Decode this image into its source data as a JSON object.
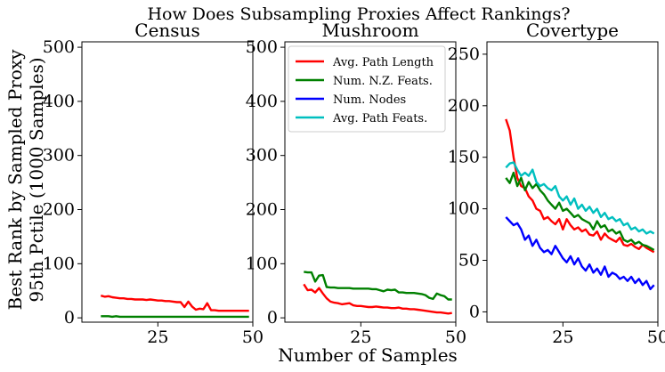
{
  "figure": {
    "title": "How Does Subsampling Proxies Affect Rankings?",
    "xlabel": "Number of Samples",
    "ylabel_line1": "Best Rank by Sampled Proxy",
    "ylabel_line2": "95th Pctile (1000 Samples)"
  },
  "colors": {
    "avg_path_length": "#ff0000",
    "num_nz_feats": "#008000",
    "num_nodes": "#0000ff",
    "avg_path_feats": "#00bfbf"
  },
  "legend": [
    {
      "label": "Avg. Path Length",
      "key": "avg_path_length"
    },
    {
      "label": "Num. N.Z. Feats.",
      "key": "num_nz_feats"
    },
    {
      "label": "Num. Nodes",
      "key": "num_nodes"
    },
    {
      "label": "Avg. Path Feats.",
      "key": "avg_path_feats"
    }
  ],
  "chart_data": [
    {
      "type": "line",
      "title": "Census",
      "xlim": [
        5,
        50
      ],
      "ylim": [
        -8,
        510
      ],
      "xticks": [
        25,
        50
      ],
      "yticks": [
        0,
        100,
        200,
        300,
        400,
        500
      ],
      "x": [
        10,
        11,
        12,
        13,
        14,
        15,
        16,
        17,
        18,
        19,
        20,
        21,
        22,
        23,
        24,
        25,
        26,
        27,
        28,
        29,
        30,
        31,
        32,
        33,
        34,
        35,
        36,
        37,
        38,
        39,
        40,
        41,
        42,
        43,
        44,
        45,
        46,
        47,
        48,
        49
      ],
      "series": [
        {
          "name": "Avg. Path Length",
          "key": "avg_path_length",
          "values": [
            41,
            39,
            40,
            38,
            37,
            36,
            36,
            35,
            35,
            34,
            34,
            34,
            33,
            34,
            33,
            32,
            32,
            31,
            31,
            30,
            29,
            29,
            20,
            30,
            21,
            15,
            17,
            16,
            27,
            14,
            14,
            13,
            13,
            13,
            13,
            13,
            13,
            13,
            13,
            13
          ]
        },
        {
          "name": "Num. N.Z. Feats.",
          "key": "num_nz_feats",
          "values": [
            3,
            3,
            3,
            2,
            3,
            2,
            2,
            2,
            2,
            2,
            2,
            2,
            2,
            2,
            2,
            2,
            2,
            2,
            2,
            2,
            2,
            2,
            2,
            2,
            2,
            2,
            2,
            2,
            2,
            2,
            2,
            2,
            2,
            2,
            2,
            2,
            2,
            2,
            2,
            2
          ]
        }
      ]
    },
    {
      "type": "line",
      "title": "Mushroom",
      "xlim": [
        5,
        50
      ],
      "ylim": [
        -8,
        510
      ],
      "xticks": [
        25,
        50
      ],
      "yticks": [
        0,
        100,
        200,
        300,
        400,
        500
      ],
      "x": [
        10,
        11,
        12,
        13,
        14,
        15,
        16,
        17,
        18,
        19,
        20,
        21,
        22,
        23,
        24,
        25,
        26,
        27,
        28,
        29,
        30,
        31,
        32,
        33,
        34,
        35,
        36,
        37,
        38,
        39,
        40,
        41,
        42,
        43,
        44,
        45,
        46,
        47,
        48,
        49
      ],
      "series": [
        {
          "name": "Avg. Path Length",
          "key": "avg_path_length",
          "values": [
            62,
            51,
            52,
            47,
            55,
            45,
            36,
            30,
            28,
            27,
            25,
            26,
            27,
            23,
            22,
            22,
            21,
            20,
            20,
            21,
            20,
            19,
            19,
            18,
            18,
            19,
            17,
            17,
            16,
            16,
            15,
            14,
            13,
            12,
            11,
            10,
            10,
            9,
            8,
            9
          ]
        },
        {
          "name": "Num. N.Z. Feats.",
          "key": "num_nz_feats",
          "values": [
            85,
            84,
            84,
            67,
            78,
            79,
            57,
            56,
            56,
            55,
            55,
            55,
            55,
            54,
            54,
            54,
            54,
            54,
            53,
            53,
            51,
            49,
            52,
            51,
            52,
            47,
            47,
            46,
            46,
            46,
            45,
            44,
            42,
            37,
            35,
            45,
            42,
            40,
            34,
            34
          ]
        }
      ]
    },
    {
      "type": "line",
      "title": "Covertype",
      "xlim": [
        5,
        50
      ],
      "ylim": [
        -10,
        262
      ],
      "xticks": [
        25,
        50
      ],
      "yticks": [
        0,
        50,
        100,
        150,
        200,
        250
      ],
      "x": [
        10,
        11,
        12,
        13,
        14,
        15,
        16,
        17,
        18,
        19,
        20,
        21,
        22,
        23,
        24,
        25,
        26,
        27,
        28,
        29,
        30,
        31,
        32,
        33,
        34,
        35,
        36,
        37,
        38,
        39,
        40,
        41,
        42,
        43,
        44,
        45,
        46,
        47,
        48,
        49
      ],
      "series": [
        {
          "name": "Avg. Path Length",
          "key": "avg_path_length",
          "values": [
            187,
            176,
            150,
            130,
            122,
            120,
            112,
            108,
            100,
            98,
            90,
            92,
            88,
            85,
            90,
            80,
            90,
            84,
            80,
            82,
            78,
            80,
            75,
            74,
            78,
            70,
            76,
            72,
            70,
            68,
            72,
            65,
            64,
            66,
            63,
            61,
            65,
            62,
            60,
            58
          ]
        },
        {
          "name": "Num. N.Z. Feats.",
          "key": "num_nz_feats",
          "values": [
            130,
            125,
            135,
            122,
            130,
            118,
            126,
            120,
            124,
            118,
            114,
            108,
            104,
            100,
            106,
            98,
            100,
            96,
            92,
            94,
            90,
            88,
            86,
            80,
            88,
            82,
            84,
            78,
            80,
            76,
            78,
            70,
            68,
            70,
            66,
            68,
            65,
            64,
            62,
            60
          ]
        },
        {
          "name": "Num. Nodes",
          "key": "num_nodes",
          "values": [
            92,
            88,
            84,
            86,
            80,
            70,
            74,
            64,
            70,
            62,
            58,
            60,
            56,
            64,
            58,
            52,
            48,
            54,
            46,
            52,
            44,
            40,
            46,
            38,
            42,
            36,
            44,
            34,
            38,
            36,
            32,
            34,
            30,
            34,
            28,
            32,
            26,
            30,
            22,
            26
          ]
        },
        {
          "name": "Avg. Path Feats.",
          "key": "avg_path_feats",
          "values": [
            140,
            144,
            145,
            138,
            132,
            135,
            132,
            138,
            126,
            122,
            124,
            120,
            118,
            122,
            112,
            108,
            112,
            104,
            110,
            100,
            104,
            98,
            102,
            96,
            100,
            92,
            96,
            90,
            92,
            88,
            90,
            84,
            86,
            80,
            82,
            78,
            80,
            76,
            78,
            76
          ]
        }
      ]
    }
  ]
}
